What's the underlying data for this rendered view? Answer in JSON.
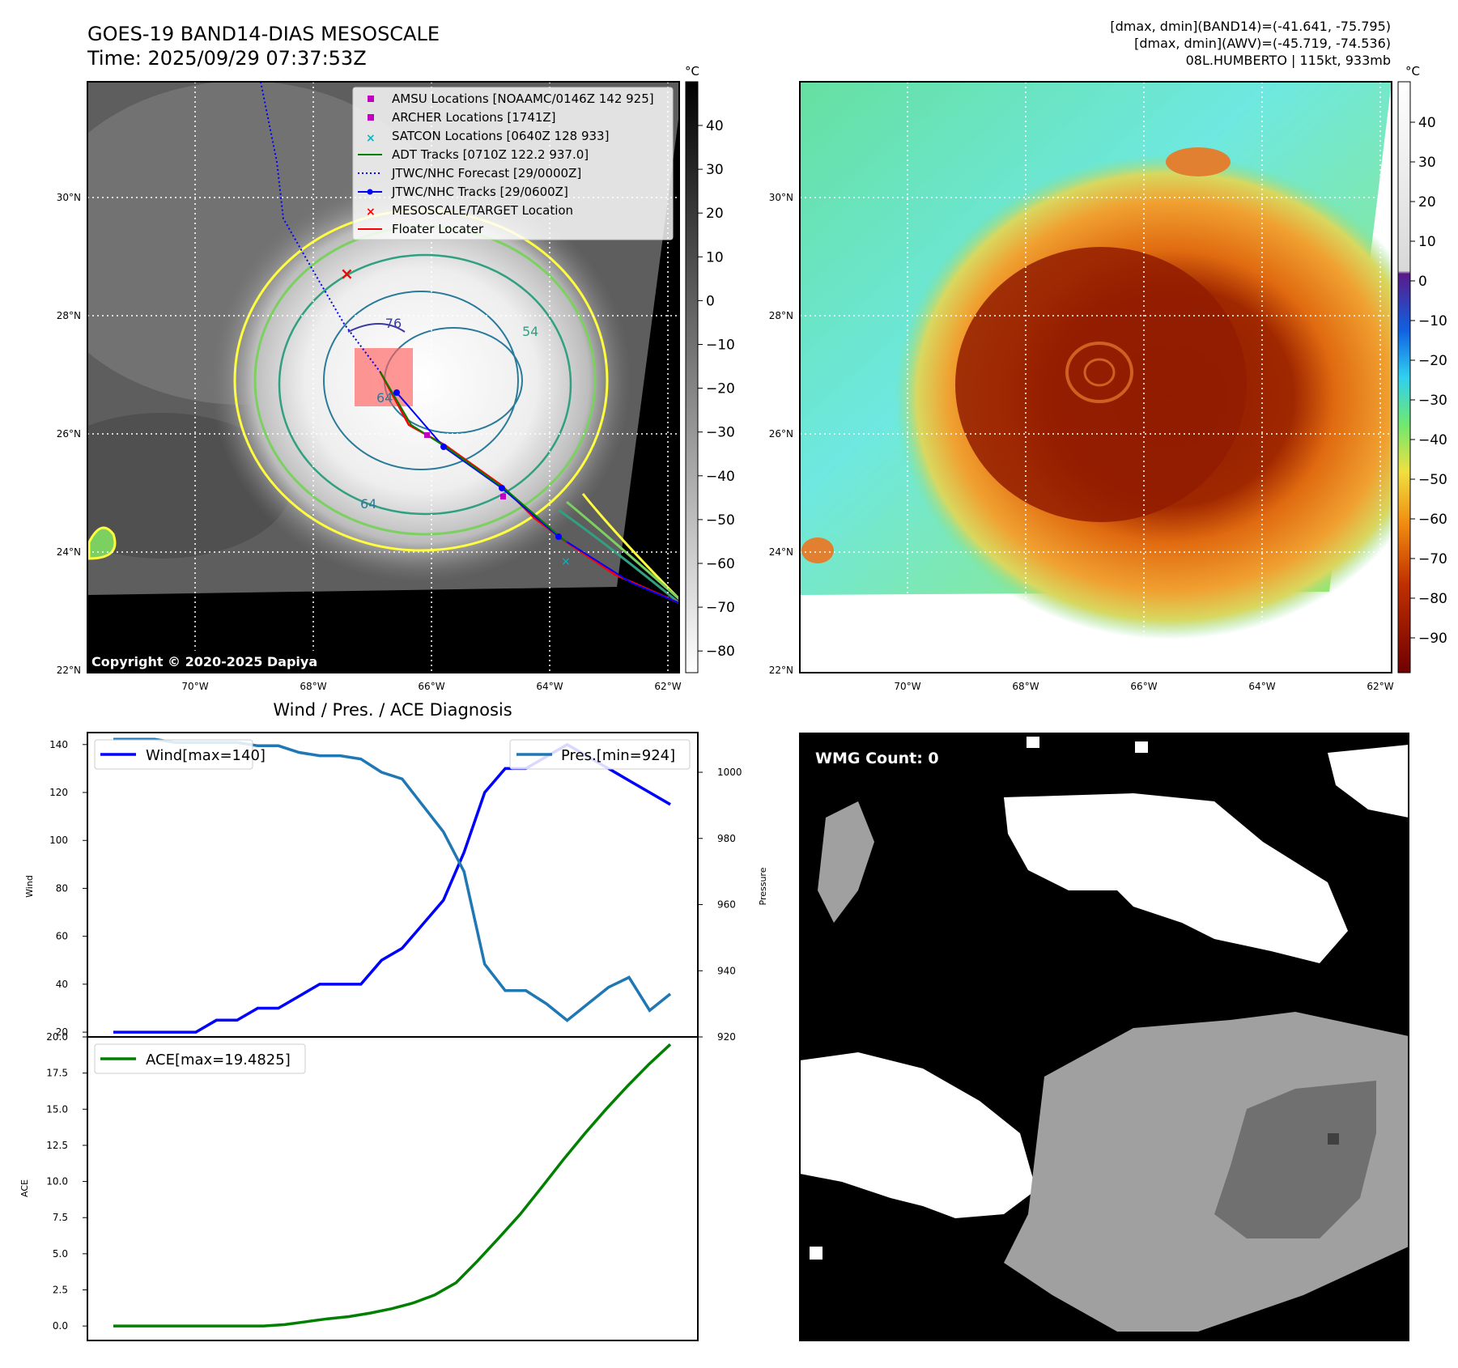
{
  "header": {
    "title_line1": "GOES-19 BAND14-DIAS MESOSCALE",
    "title_line2": "Time: 2025/09/29 07:37:53Z",
    "info_line1": "[dmax, dmin](BAND14)=(-41.641, -75.795)",
    "info_line2": "[dmax, dmin](AWV)=(-45.719, -74.536)",
    "info_line3": "08L.HUMBERTO | 115kt, 933mb"
  },
  "map": {
    "lat_labels": [
      "30°N",
      "28°N",
      "26°N",
      "24°N",
      "22°N"
    ],
    "lon_labels": [
      "70°W",
      "68°W",
      "66°W",
      "64°W",
      "62°W"
    ],
    "copyright": "Copyright © 2020-2025 Dapiya",
    "contour_labels": [
      "-76",
      "54",
      "64",
      "64"
    ],
    "legend": [
      "AMSU Locations [NOAAMC/0146Z 142 925]",
      "ARCHER Locations [1741Z]",
      "SATCON Locations [0640Z 128 933]",
      "ADT Tracks [0710Z 122.2 937.0]",
      "JTWC/NHC Forecast [29/0000Z]",
      "JTWC/NHC Tracks [29/0600Z]",
      "MESOSCALE/TARGET Location",
      "Floater Locater"
    ],
    "colors": {
      "amsu": "#c000c0",
      "archer": "#c000c0",
      "satcon": "#00b8c8",
      "adt": "#008000",
      "forecast": "#0000ff",
      "tracks": "#0000ff",
      "target": "#ff0000",
      "floater": "#ff0000"
    }
  },
  "colorbar_left": {
    "unit": "°C",
    "ticks": [
      "40",
      "30",
      "20",
      "10",
      "0",
      "−10",
      "−20",
      "−30",
      "−40",
      "−50",
      "−60",
      "−70",
      "−80"
    ]
  },
  "colorbar_right": {
    "unit": "°C",
    "ticks": [
      "40",
      "30",
      "20",
      "10",
      "0",
      "−10",
      "−20",
      "−30",
      "−40",
      "−50",
      "−60",
      "−70",
      "−80",
      "−90"
    ]
  },
  "wmg": {
    "count_label": "WMG Count: 0"
  },
  "chart_data": [
    {
      "type": "line",
      "title": "Wind / Pres. / ACE Diagnosis",
      "ylabel": "Wind",
      "y2label": "Pressure",
      "ylim": [
        18,
        145
      ],
      "y2lim": [
        920,
        1012
      ],
      "yticks": [
        "20",
        "40",
        "60",
        "80",
        "100",
        "120",
        "140"
      ],
      "y2ticks": [
        "920",
        "940",
        "960",
        "980",
        "1000"
      ],
      "grid": false,
      "legend": [
        "top-left",
        "top-right"
      ],
      "series": [
        {
          "name": "Wind[max=140]",
          "color": "#0000ff",
          "values": [
            20,
            20,
            20,
            20,
            20,
            25,
            25,
            30,
            30,
            35,
            40,
            40,
            40,
            50,
            55,
            65,
            75,
            95,
            120,
            130,
            130,
            135,
            140,
            135,
            130,
            125,
            120,
            115
          ]
        },
        {
          "name": "Pres.[min=924]",
          "color": "#1f77b4",
          "values": [
            1010,
            1010,
            1010,
            1009,
            1009,
            1009,
            1009,
            1008,
            1008,
            1006,
            1005,
            1005,
            1004,
            1000,
            998,
            990,
            982,
            970,
            942,
            934,
            934,
            930,
            925,
            930,
            935,
            938,
            928,
            933
          ]
        }
      ]
    },
    {
      "type": "line",
      "ylabel": "ACE",
      "ylim": [
        -1.0,
        20.0
      ],
      "yticks": [
        "0.0",
        "2.5",
        "5.0",
        "7.5",
        "10.0",
        "12.5",
        "15.0",
        "17.5",
        "20.0"
      ],
      "grid": false,
      "legend": "top-left",
      "series": [
        {
          "name": "ACE[max=19.4825]",
          "color": "#008000",
          "values": [
            0,
            0,
            0,
            0,
            0,
            0,
            0,
            0,
            0.1,
            0.3,
            0.5,
            0.65,
            0.9,
            1.2,
            1.6,
            2.15,
            3.0,
            4.5,
            6.1,
            7.75,
            9.6,
            11.5,
            13.3,
            15.0,
            16.6,
            18.1,
            19.4825
          ]
        }
      ]
    }
  ]
}
